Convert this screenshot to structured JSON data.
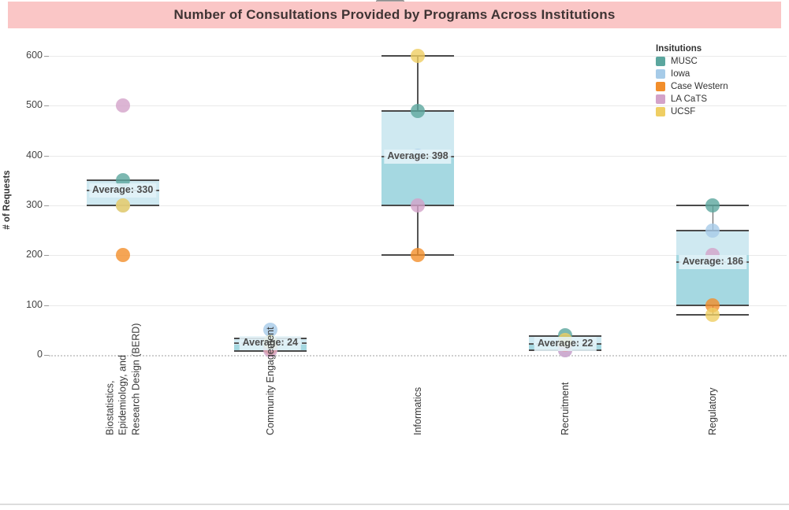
{
  "header": {
    "title": "Number of Consultations Provided by Programs Across Institutions"
  },
  "y_axis": {
    "label": "# of Requests",
    "ticks": [
      0,
      100,
      200,
      300,
      400,
      500,
      600
    ]
  },
  "legend": {
    "title": "Insitutions",
    "items": [
      {
        "label": "MUSC",
        "color": "#5BA69E"
      },
      {
        "label": "Iowa",
        "color": "#A6CBE8"
      },
      {
        "label": "Case Western",
        "color": "#F28E2B"
      },
      {
        "label": "LA CaTS",
        "color": "#D3A2C9"
      },
      {
        "label": "UCSF",
        "color": "#EFCE63"
      }
    ]
  },
  "colors": {
    "header_bg": "#FAC6C6",
    "box_light": "#CFE9F1",
    "box_dark": "#A5D8E1",
    "box_border": "#4A4A4A",
    "avg_label_bg": "rgba(228,242,248,0.88)"
  },
  "chart_data": {
    "type": "boxplot",
    "title": "Number of Consultations Provided by Programs Across Institutions",
    "xlabel": "",
    "ylabel": "# of Requests",
    "ylim": [
      0,
      620
    ],
    "y_ticks": [
      0,
      100,
      200,
      300,
      400,
      500,
      600
    ],
    "grid": "horizontal",
    "legend_position": "top-right",
    "legend_title": "Insitutions",
    "categories": [
      "Biostatistics,\nEpidemiology, and\nResearch Design (BERD)",
      "Community Engagement",
      "Informatics",
      "Recruitment",
      "Regulatory"
    ],
    "series": [
      {
        "name": "MUSC",
        "color": "#5BA69E",
        "values": [
          350,
          20,
          490,
          40,
          300
        ]
      },
      {
        "name": "Iowa",
        "color": "#A6CBE8",
        "values": [
          300,
          50,
          400,
          10,
          250
        ]
      },
      {
        "name": "Case Western",
        "color": "#F28E2B",
        "values": [
          200,
          15,
          200,
          20,
          100
        ]
      },
      {
        "name": "LA CaTS",
        "color": "#D3A2C9",
        "values": [
          500,
          10,
          300,
          10,
          200
        ]
      },
      {
        "name": "UCSF",
        "color": "#EFCE63",
        "values": [
          300,
          25,
          600,
          30,
          80
        ]
      }
    ],
    "boxes": [
      {
        "category": "Biostatistics, Epidemiology, and Research Design (BERD)",
        "whisker_low": null,
        "q1": 300,
        "median": 300,
        "q3": 350,
        "whisker_high": null,
        "average": 330,
        "avg_label": "Average: 330"
      },
      {
        "category": "Community Engagement",
        "whisker_low": null,
        "q1": 8,
        "median": 20,
        "q3": 33,
        "whisker_high": null,
        "average": 24,
        "avg_label": "Average: 24"
      },
      {
        "category": "Informatics",
        "whisker_low": 200,
        "q1": 300,
        "median": 400,
        "q3": 490,
        "whisker_high": 600,
        "average": 398,
        "avg_label": "Average: 398"
      },
      {
        "category": "Recruitment",
        "whisker_low": null,
        "q1": 9,
        "median": 20,
        "q3": 38,
        "whisker_high": null,
        "average": 22,
        "avg_label": "Average: 22"
      },
      {
        "category": "Regulatory",
        "whisker_low": 80,
        "q1": 100,
        "median": 200,
        "q3": 250,
        "whisker_high": 300,
        "average": 186,
        "avg_label": "Average: 186"
      }
    ]
  }
}
